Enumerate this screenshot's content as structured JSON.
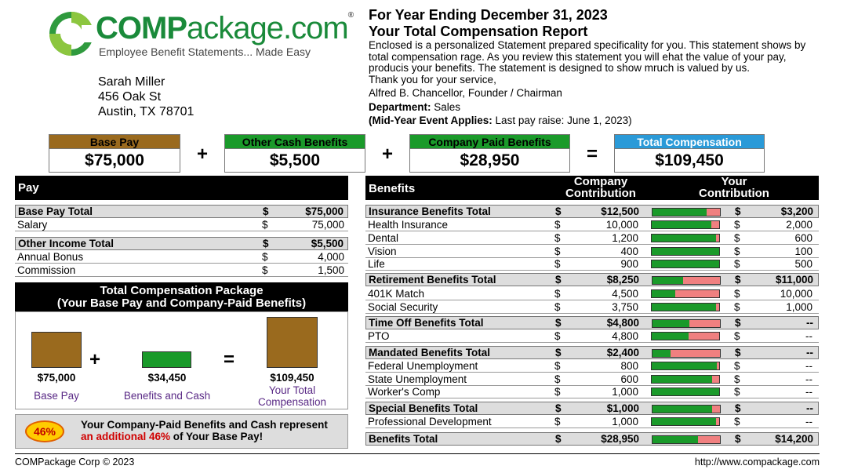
{
  "logo": {
    "c": "C",
    "omp": "OMP",
    "rest": "ackage.com",
    "reg": "®",
    "tagline": "Employee Benefit Statements... Made Easy"
  },
  "address": {
    "name": "Sarah Miller",
    "street": "456 Oak St",
    "city": "Austin, TX 78701"
  },
  "header": {
    "line1": "For Year Ending December 31, 2023",
    "line2": "Your Total Compensation Report",
    "intro": "Enclosed is a personalized Statement prepared specificality for you. This statement shows by total compensation rage. As you review this statement you will ehat the value of your pay, producis your benefits. The statement is designed to show mruch is valued by us.",
    "thanks": "Thank you for your service,",
    "signer": "Alfred B. Chancellor, Founder / Chairman",
    "dept_label": "Department:",
    "dept_value": "Sales",
    "event_label": "(Mid-Year Event Applies:",
    "event_value": "Last pay raise: June 1, 2023)"
  },
  "summary": {
    "base": {
      "label": "Base Pay",
      "value": "$75,000",
      "color": "#9a6a1e"
    },
    "other": {
      "label": "Other Cash Benefits",
      "value": "$5,500",
      "color": "#1a9a2a"
    },
    "company": {
      "label": "Company Paid Benefits",
      "value": "$28,950",
      "color": "#1a9a2a"
    },
    "total": {
      "label": "Total Compensation",
      "value": "$109,450",
      "color": "#2a9ad8"
    },
    "plus": "+",
    "equals": "="
  },
  "pay": {
    "title": "Pay",
    "rows": [
      {
        "label": "Base Pay Total",
        "cur": "$",
        "amt": "$75,000",
        "total": true
      },
      {
        "label": "Salary",
        "cur": "$",
        "amt": "75,000"
      },
      {
        "label": "Other Income Total",
        "cur": "$",
        "amt": "$5,500",
        "total": true
      },
      {
        "label": "Annual Bonus",
        "cur": "$",
        "amt": "4,000"
      },
      {
        "label": "Commission",
        "cur": "$",
        "amt": "1,500"
      }
    ]
  },
  "package": {
    "title1": "Total Compensation Package",
    "title2": "(Your Base Pay and Company-Paid Benefits)",
    "base_amt": "$75,000",
    "base_lbl": "Base Pay",
    "ben_amt": "$34,450",
    "ben_lbl": "Benefits and Cash",
    "tot_amt": "$109,450",
    "tot_lbl1": "Your Total",
    "tot_lbl2": "Compensation",
    "plus": "+",
    "equals": "="
  },
  "note": {
    "badge": "46%",
    "line1": "Your Company-Paid Benefits and Cash represent",
    "red": "an additional 46%",
    "line2_rest": " of Your Base Pay!"
  },
  "benefits": {
    "title": "Benefits",
    "col1a": "Company",
    "col1b": "Contribution",
    "col2a": "Your",
    "col2b": "Contribution",
    "rows": [
      {
        "label": "Insurance Benefits Total",
        "cur": "$",
        "amt": "$12,500",
        "share": 0.8,
        "cur2": "$",
        "amt2": "$3,200",
        "total": true
      },
      {
        "label": "Health Insurance",
        "cur": "$",
        "amt": "10,000",
        "share": 0.88,
        "cur2": "$",
        "amt2": "2,000"
      },
      {
        "label": "Dental",
        "cur": "$",
        "amt": "1,200",
        "share": 0.95,
        "cur2": "$",
        "amt2": "600"
      },
      {
        "label": "Vision",
        "cur": "$",
        "amt": "400",
        "share": 1.0,
        "cur2": "$",
        "amt2": "100"
      },
      {
        "label": "Life",
        "cur": "$",
        "amt": "900",
        "share": 1.0,
        "cur2": "$",
        "amt2": "500"
      },
      {
        "label": "Retirement Benefits Total",
        "cur": "$",
        "amt": "$8,250",
        "share": 0.45,
        "cur2": "$",
        "amt2": "$11,000",
        "total": true
      },
      {
        "label": "401K Match",
        "cur": "$",
        "amt": "4,500",
        "share": 0.35,
        "cur2": "$",
        "amt2": "10,000"
      },
      {
        "label": "Social Security",
        "cur": "$",
        "amt": "3,750",
        "share": 0.95,
        "cur2": "$",
        "amt2": "1,000"
      },
      {
        "label": "Time Off Benefits Total",
        "cur": "$",
        "amt": "$4,800",
        "share": 0.55,
        "cur2": "$",
        "amt2": "--",
        "total": true
      },
      {
        "label": "PTO",
        "cur": "$",
        "amt": "4,800",
        "share": 0.55,
        "cur2": "$",
        "amt2": "--"
      },
      {
        "label": "Mandated Benefits Total",
        "cur": "$",
        "amt": "$2,400",
        "share": 0.27,
        "cur2": "$",
        "amt2": "--",
        "total": true
      },
      {
        "label": "Federal Unemployment",
        "cur": "$",
        "amt": "800",
        "share": 0.97,
        "cur2": "$",
        "amt2": "--"
      },
      {
        "label": "State Unemployment",
        "cur": "$",
        "amt": "600",
        "share": 0.9,
        "cur2": "$",
        "amt2": "--"
      },
      {
        "label": "Worker's Comp",
        "cur": "$",
        "amt": "1,000",
        "share": 1.0,
        "cur2": "$",
        "amt2": "--"
      },
      {
        "label": "Special Benefits Total",
        "cur": "$",
        "amt": "$1,000",
        "share": 0.88,
        "cur2": "$",
        "amt2": "--",
        "total": true
      },
      {
        "label": "Professional Development",
        "cur": "$",
        "amt": "1,000",
        "share": 0.95,
        "cur2": "$",
        "amt2": "--"
      },
      {
        "label": "Benefits Total",
        "cur": "$",
        "amt": "$28,950",
        "share": 0.67,
        "cur2": "$",
        "amt2": "$14,200",
        "total": true
      }
    ]
  },
  "footer": {
    "left": "COMPackage Corp © 2023",
    "right": "http://www.compackage.com"
  }
}
